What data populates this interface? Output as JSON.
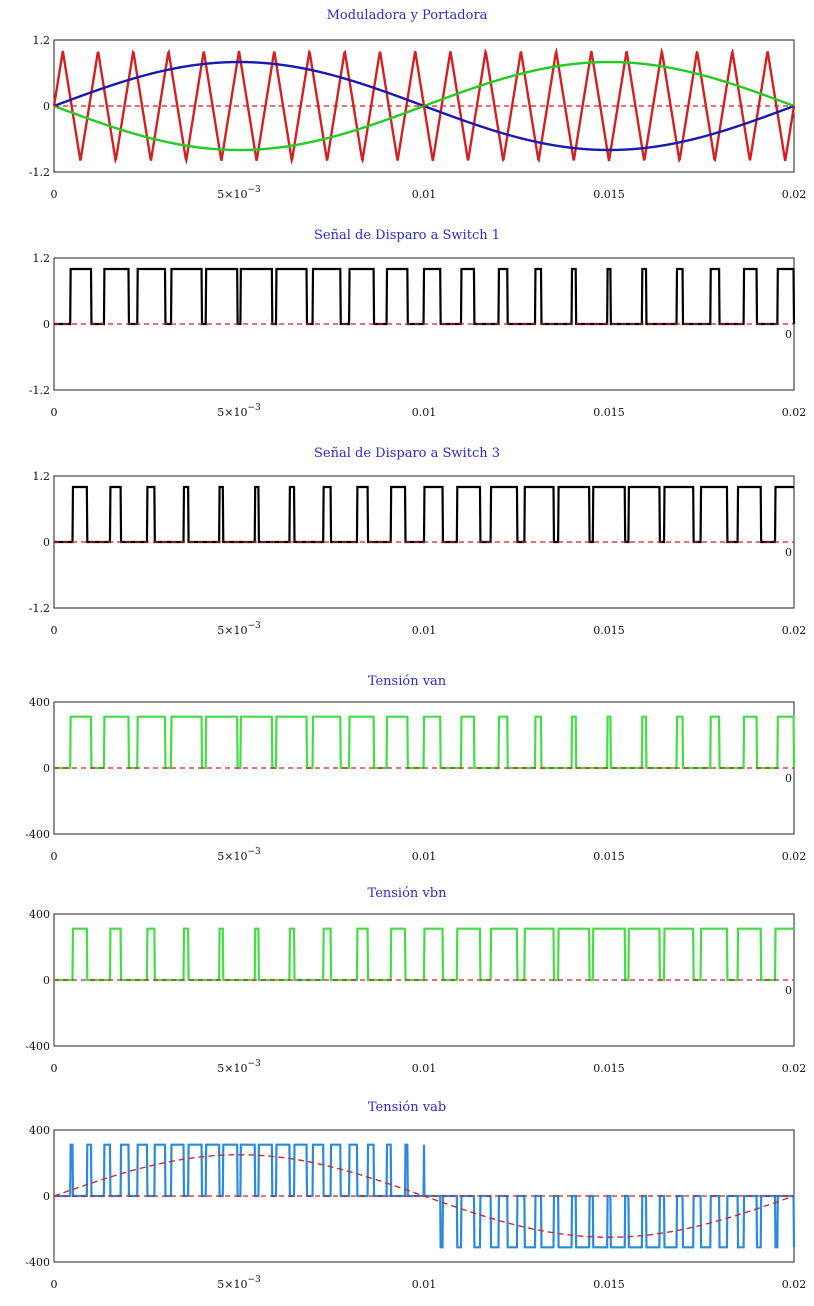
{
  "charts": [
    {
      "title": "Moduladora y Portadora",
      "type": "line",
      "xlim": [
        0,
        0.02
      ],
      "ylim": [
        -1.2,
        1.2
      ],
      "ytick_labels": [
        "1.2",
        "0",
        "-1.2"
      ],
      "xtick_labels": [
        "0",
        "5×10",
        "0.01",
        "0.015",
        "0.02"
      ],
      "xtick_exponent": "−3",
      "right_label": "",
      "series": [
        {
          "kind": "triangle",
          "color": "#d42020",
          "amplitude": 1.0,
          "cycles": 21
        },
        {
          "kind": "sine",
          "color": "#1a1ab0",
          "amplitude": 0.8
        },
        {
          "kind": "sine",
          "color": "#22cc22",
          "amplitude": -0.8
        },
        {
          "kind": "hline",
          "color": "#d42020",
          "y": 0
        }
      ]
    },
    {
      "title": "Señal de Disparo a Switch 1",
      "type": "line",
      "xlim": [
        0,
        0.02
      ],
      "ylim": [
        -1.2,
        1.2
      ],
      "ytick_labels": [
        "1.2",
        "0",
        "-1.2"
      ],
      "xtick_labels": [
        "0",
        "5×10",
        "0.01",
        "0.015",
        "0.02"
      ],
      "xtick_exponent": "−3",
      "right_label": "0",
      "series": [
        {
          "kind": "pwm",
          "color": "#000000",
          "high": 1.0,
          "mod_sign": 1,
          "cycles": 21
        },
        {
          "kind": "hline",
          "color": "#d42020",
          "y": 0
        }
      ]
    },
    {
      "title": "Señal de Disparo a Switch 3",
      "type": "line",
      "xlim": [
        0,
        0.02
      ],
      "ylim": [
        -1.2,
        1.2
      ],
      "ytick_labels": [
        "1.2",
        "0",
        "-1.2"
      ],
      "xtick_labels": [
        "0",
        "5×10",
        "0.01",
        "0.015",
        "0.02"
      ],
      "xtick_exponent": "−3",
      "right_label": "0",
      "series": [
        {
          "kind": "pwm",
          "color": "#000000",
          "high": 1.0,
          "mod_sign": -1,
          "cycles": 21
        },
        {
          "kind": "hline",
          "color": "#d42020",
          "y": 0
        }
      ]
    },
    {
      "title": "Tensión van",
      "type": "line",
      "xlim": [
        0,
        0.02
      ],
      "ylim": [
        -400,
        400
      ],
      "ytick_labels": [
        "400",
        "0",
        "-400"
      ],
      "xtick_labels": [
        "0",
        "5×10",
        "0.01",
        "0.015",
        "0.02"
      ],
      "xtick_exponent": "−3",
      "right_label": "0",
      "series": [
        {
          "kind": "pwm",
          "color": "#44dd44",
          "high": 311,
          "mod_sign": 1,
          "cycles": 21
        },
        {
          "kind": "hline",
          "color": "#d42020",
          "y": 0
        }
      ]
    },
    {
      "title": "Tensión vbn",
      "type": "line",
      "xlim": [
        0,
        0.02
      ],
      "ylim": [
        -400,
        400
      ],
      "ytick_labels": [
        "400",
        "0",
        "-400"
      ],
      "xtick_labels": [
        "0",
        "5×10",
        "0.01",
        "0.015",
        "0.02"
      ],
      "xtick_exponent": "−3",
      "right_label": "0",
      "series": [
        {
          "kind": "pwm",
          "color": "#44dd44",
          "high": 311,
          "mod_sign": -1,
          "cycles": 21
        },
        {
          "kind": "hline",
          "color": "#d42020",
          "y": 0
        }
      ]
    },
    {
      "title": "Tensión vab",
      "type": "line",
      "xlim": [
        0,
        0.02
      ],
      "ylim": [
        -400,
        400
      ],
      "ytick_labels": [
        "400",
        "0",
        "-400"
      ],
      "xtick_labels": [
        "0",
        "5×10",
        "0.01",
        "0.015",
        "0.02"
      ],
      "xtick_exponent": "−3",
      "right_label": "",
      "series": [
        {
          "kind": "pwm_diff",
          "color": "#2a8ae0",
          "high": 311,
          "cycles": 21
        },
        {
          "kind": "sine",
          "color": "#c03030",
          "amplitude": 250,
          "dashed": true
        },
        {
          "kind": "hline",
          "color": "#d42020",
          "y": 0
        }
      ]
    }
  ],
  "chart_data": [
    {
      "type": "line",
      "title": "Moduladora y Portadora",
      "x": [
        0,
        0.005,
        0.01,
        0.015,
        0.02
      ],
      "series": [
        {
          "values": [
            0,
            0.8,
            0,
            -0.8,
            0
          ]
        },
        {
          "values": [
            0,
            -0.8,
            0,
            0.8,
            0
          ]
        }
      ],
      "ylim": [
        -1.2,
        1.2
      ],
      "xlim": [
        0,
        0.02
      ]
    },
    {
      "type": "line",
      "title": "Señal de Disparo a Switch 1",
      "ylim": [
        -1.2,
        1.2
      ],
      "xlim": [
        0,
        0.02
      ],
      "levels": [
        0,
        1
      ]
    },
    {
      "type": "line",
      "title": "Señal de Disparo a Switch 3",
      "ylim": [
        -1.2,
        1.2
      ],
      "xlim": [
        0,
        0.02
      ],
      "levels": [
        0,
        1
      ]
    },
    {
      "type": "line",
      "title": "Tensión van",
      "ylim": [
        -400,
        400
      ],
      "xlim": [
        0,
        0.02
      ],
      "levels": [
        0,
        311
      ]
    },
    {
      "type": "line",
      "title": "Tensión vbn",
      "ylim": [
        -400,
        400
      ],
      "xlim": [
        0,
        0.02
      ],
      "levels": [
        0,
        311
      ]
    },
    {
      "type": "line",
      "title": "Tensión vab",
      "ylim": [
        -400,
        400
      ],
      "xlim": [
        0,
        0.02
      ],
      "levels": [
        -311,
        0,
        311
      ],
      "fundamental_amplitude": 250
    }
  ]
}
